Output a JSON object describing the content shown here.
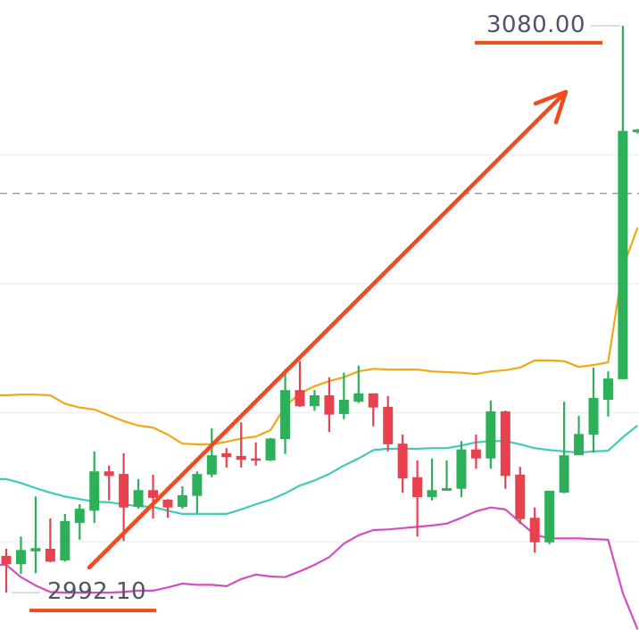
{
  "chart_data": {
    "type": "candlestick",
    "ylim": [
      2986.3,
      3084.0
    ],
    "grid": true,
    "gridlines": [
      3000,
      3020,
      3040,
      3060
    ],
    "reference_line": 3054.0,
    "colors": {
      "up": "#2eb05a",
      "down": "#e8424f",
      "upper_band": "#f0a818",
      "middle_band": "#3ecdb4",
      "lower_band": "#d24fc0",
      "annotation": "#f04a23",
      "grid": "#eef0f6",
      "reference": "#8a8f99"
    },
    "candles": [
      [
        2997.8,
        2998.9,
        2992.1,
        2996.5
      ],
      [
        2996.5,
        3000.8,
        2995.0,
        2998.7
      ],
      [
        2998.5,
        3007.0,
        2995.1,
        2999.0
      ],
      [
        2998.9,
        3003.6,
        2996.8,
        2996.9
      ],
      [
        2997.1,
        3004.3,
        2996.9,
        3003.2
      ],
      [
        3002.9,
        3005.8,
        3000.3,
        3005.1
      ],
      [
        3004.8,
        3014.0,
        3002.9,
        3010.9
      ],
      [
        3010.9,
        3011.8,
        3006.4,
        3010.2
      ],
      [
        3010.5,
        3013.7,
        3000.1,
        3005.3
      ],
      [
        3005.4,
        3009.7,
        3005.1,
        3008.0
      ],
      [
        3008.0,
        3010.4,
        3003.6,
        3006.8
      ],
      [
        3006.5,
        3006.6,
        3003.7,
        3005.3
      ],
      [
        3005.4,
        3008.6,
        3005.1,
        3007.2
      ],
      [
        3007.1,
        3010.9,
        3004.4,
        3010.5
      ],
      [
        3010.4,
        3017.6,
        3010.0,
        3013.4
      ],
      [
        3013.7,
        3014.5,
        3011.5,
        3013.1
      ],
      [
        3013.3,
        3018.5,
        3011.5,
        3012.7
      ],
      [
        3012.9,
        3015.4,
        3011.8,
        3012.6
      ],
      [
        3012.6,
        3016.1,
        3012.5,
        3016.0
      ],
      [
        3015.9,
        3026.8,
        3013.6,
        3023.5
      ],
      [
        3023.5,
        3028.0,
        3020.9,
        3021.0
      ],
      [
        3021.0,
        3023.5,
        3020.3,
        3022.7
      ],
      [
        3022.7,
        3025.5,
        3017.0,
        3019.7
      ],
      [
        3019.8,
        3026.2,
        3019.0,
        3022.0
      ],
      [
        3021.7,
        3027.3,
        3021.5,
        3023.0
      ],
      [
        3023.0,
        3023.0,
        3017.9,
        3020.8
      ],
      [
        3020.9,
        3022.6,
        3014.0,
        3015.1
      ],
      [
        3015.2,
        3016.6,
        3007.6,
        3009.8
      ],
      [
        3010.0,
        3012.6,
        3000.8,
        3006.9
      ],
      [
        3006.9,
        3012.9,
        3006.4,
        3008.0
      ],
      [
        3007.9,
        3012.6,
        3007.9,
        3008.3
      ],
      [
        3008.2,
        3015.6,
        3006.9,
        3014.3
      ],
      [
        3014.3,
        3016.6,
        3011.3,
        3012.9
      ],
      [
        3012.9,
        3021.9,
        3011.3,
        3020.2
      ],
      [
        3020.2,
        3020.3,
        3008.2,
        3010.2
      ],
      [
        3010.4,
        3011.6,
        3002.8,
        3003.5
      ],
      [
        3003.7,
        3005.3,
        2998.3,
        2999.9
      ],
      [
        2999.9,
        3007.9,
        2999.6,
        3007.9
      ],
      [
        3007.6,
        3021.7,
        3007.5,
        3013.4
      ],
      [
        3013.4,
        3019.5,
        3013.4,
        3016.7
      ],
      [
        3016.6,
        3027.0,
        3013.8,
        3022.3
      ],
      [
        3022.0,
        3026.4,
        3019.4,
        3025.3
      ],
      [
        3025.2,
        3080.0,
        3025.2,
        3063.7
      ],
      [
        3063.5,
        3064.0,
        3063.3,
        3063.9
      ]
    ],
    "upper_band": [
      3022.7,
      3022.8,
      3022.8,
      3022.7,
      3021.4,
      3020.8,
      3020.5,
      3019.6,
      3018.7,
      3018.0,
      3017.7,
      3016.6,
      3015.2,
      3015.1,
      3015.1,
      3015.5,
      3016.0,
      3016.3,
      3017.3,
      3021.0,
      3023.0,
      3024.1,
      3024.9,
      3025.5,
      3026.4,
      3026.8,
      3026.7,
      3026.7,
      3026.7,
      3026.4,
      3026.3,
      3026.2,
      3026.0,
      3026.4,
      3026.6,
      3027.0,
      3028.1,
      3028.1,
      3028.0,
      3027.1,
      3027.4,
      3027.8,
      3042.5,
      3048.7
    ],
    "middle_band": [
      3009.7,
      3009.1,
      3008.3,
      3007.6,
      3007.0,
      3006.6,
      3006.2,
      3006.1,
      3005.8,
      3005.5,
      3005.4,
      3004.8,
      3004.3,
      3004.3,
      3004.3,
      3004.3,
      3005.0,
      3005.8,
      3006.5,
      3007.5,
      3008.7,
      3009.5,
      3010.5,
      3011.8,
      3012.9,
      3014.2,
      3014.4,
      3014.4,
      3014.4,
      3014.5,
      3014.5,
      3014.9,
      3015.4,
      3015.6,
      3015.6,
      3015.1,
      3014.5,
      3014.2,
      3014.0,
      3013.8,
      3014.0,
      3014.1,
      3016.2,
      3018.0
    ],
    "lower_band": [
      2996.4,
      2994.5,
      2993.2,
      2992.2,
      2992.1,
      2992.1,
      2992.1,
      2992.1,
      2992.2,
      2992.4,
      2992.4,
      2992.9,
      2993.5,
      2993.3,
      2993.3,
      2993.1,
      2994.2,
      2994.9,
      2994.6,
      2994.5,
      2995.4,
      2996.4,
      2997.6,
      2999.7,
      3001.0,
      3001.8,
      3001.9,
      3002.1,
      3002.3,
      3002.5,
      3002.8,
      3003.7,
      3004.7,
      3005.3,
      3005.0,
      3003.0,
      3001.1,
      3000.5,
      3000.5,
      3000.5,
      3000.4,
      3000.3,
      2992.0,
      2986.4
    ],
    "annotations": {
      "high_label": "3080.00",
      "high_value": 3080.0,
      "low_label": "2992.10",
      "low_value": 2992.1
    }
  }
}
